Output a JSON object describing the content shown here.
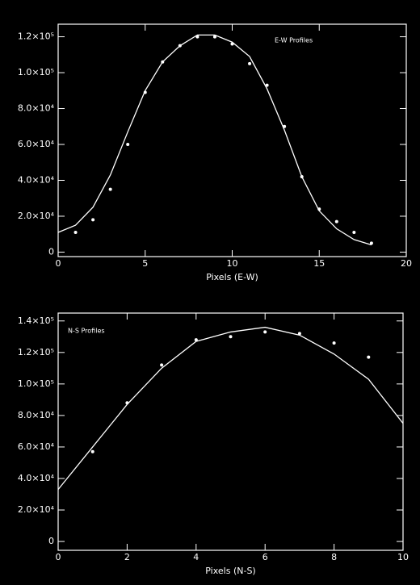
{
  "chart_data": [
    {
      "type": "scatter",
      "annotation": "E-W Profiles",
      "x_label": "Pixels (E-W)",
      "xlim": [
        0,
        20
      ],
      "xticks": [
        0,
        5,
        10,
        15,
        20
      ],
      "ylim": [
        -2500,
        127000
      ],
      "yticks": [
        0,
        {
          "value": 20000,
          "label": "2.0×10⁴"
        },
        {
          "value": 40000,
          "label": "4.0×10⁴"
        },
        {
          "value": 60000,
          "label": "6.0×10⁴"
        },
        {
          "value": 80000,
          "label": "8.0×10⁴"
        },
        {
          "value": 100000,
          "label": "1.0×10⁵"
        },
        {
          "value": 120000,
          "label": "1.2×10⁵"
        }
      ],
      "color": "#ffffff",
      "series": [
        {
          "style": "points",
          "x": [
            1,
            2,
            3,
            4,
            5,
            6,
            7,
            8,
            9,
            10,
            11,
            12,
            13,
            14,
            15,
            16,
            17,
            18
          ],
          "values": [
            11000,
            18000,
            35000,
            60000,
            89000,
            106000,
            115000,
            120000,
            120000,
            116000,
            105000,
            93000,
            70000,
            42000,
            24000,
            17000,
            11000,
            5000
          ]
        },
        {
          "style": "line",
          "x": [
            0,
            1,
            2,
            3,
            4,
            5,
            6,
            7,
            8,
            9,
            10,
            11,
            12,
            13,
            14,
            15,
            16,
            17,
            18
          ],
          "values": [
            11000,
            15000,
            25000,
            43000,
            67000,
            90000,
            106000,
            115000,
            121000,
            121000,
            117000,
            109000,
            91000,
            68000,
            42000,
            23000,
            13000,
            7000,
            4000
          ]
        }
      ]
    },
    {
      "type": "scatter",
      "annotation": "N-S Profiles",
      "x_label": "Pixels (N-S)",
      "xlim": [
        0,
        10
      ],
      "xticks": [
        0,
        2,
        4,
        6,
        8,
        10
      ],
      "ylim": [
        -5600,
        145000
      ],
      "yticks": [
        0,
        {
          "value": 20000,
          "label": "2.0×10⁴"
        },
        {
          "value": 40000,
          "label": "4.0×10⁴"
        },
        {
          "value": 60000,
          "label": "6.0×10⁴"
        },
        {
          "value": 80000,
          "label": "8.0×10⁴"
        },
        {
          "value": 100000,
          "label": "1.0×10⁵"
        },
        {
          "value": 120000,
          "label": "1.2×10⁵"
        },
        {
          "value": 140000,
          "label": "1.4×10⁵"
        }
      ],
      "color": "#ffffff",
      "series": [
        {
          "style": "points",
          "x": [
            1,
            2,
            3,
            4,
            5,
            6,
            7,
            8,
            9
          ],
          "values": [
            57000,
            88000,
            112000,
            128000,
            130000,
            133000,
            132000,
            126000,
            117000
          ]
        },
        {
          "style": "line",
          "x": [
            0,
            1,
            2,
            3,
            4,
            5,
            6,
            7,
            8,
            9,
            10
          ],
          "values": [
            33000,
            60000,
            87000,
            110000,
            127000,
            133000,
            136000,
            131000,
            119000,
            103000,
            75000
          ]
        }
      ]
    }
  ]
}
